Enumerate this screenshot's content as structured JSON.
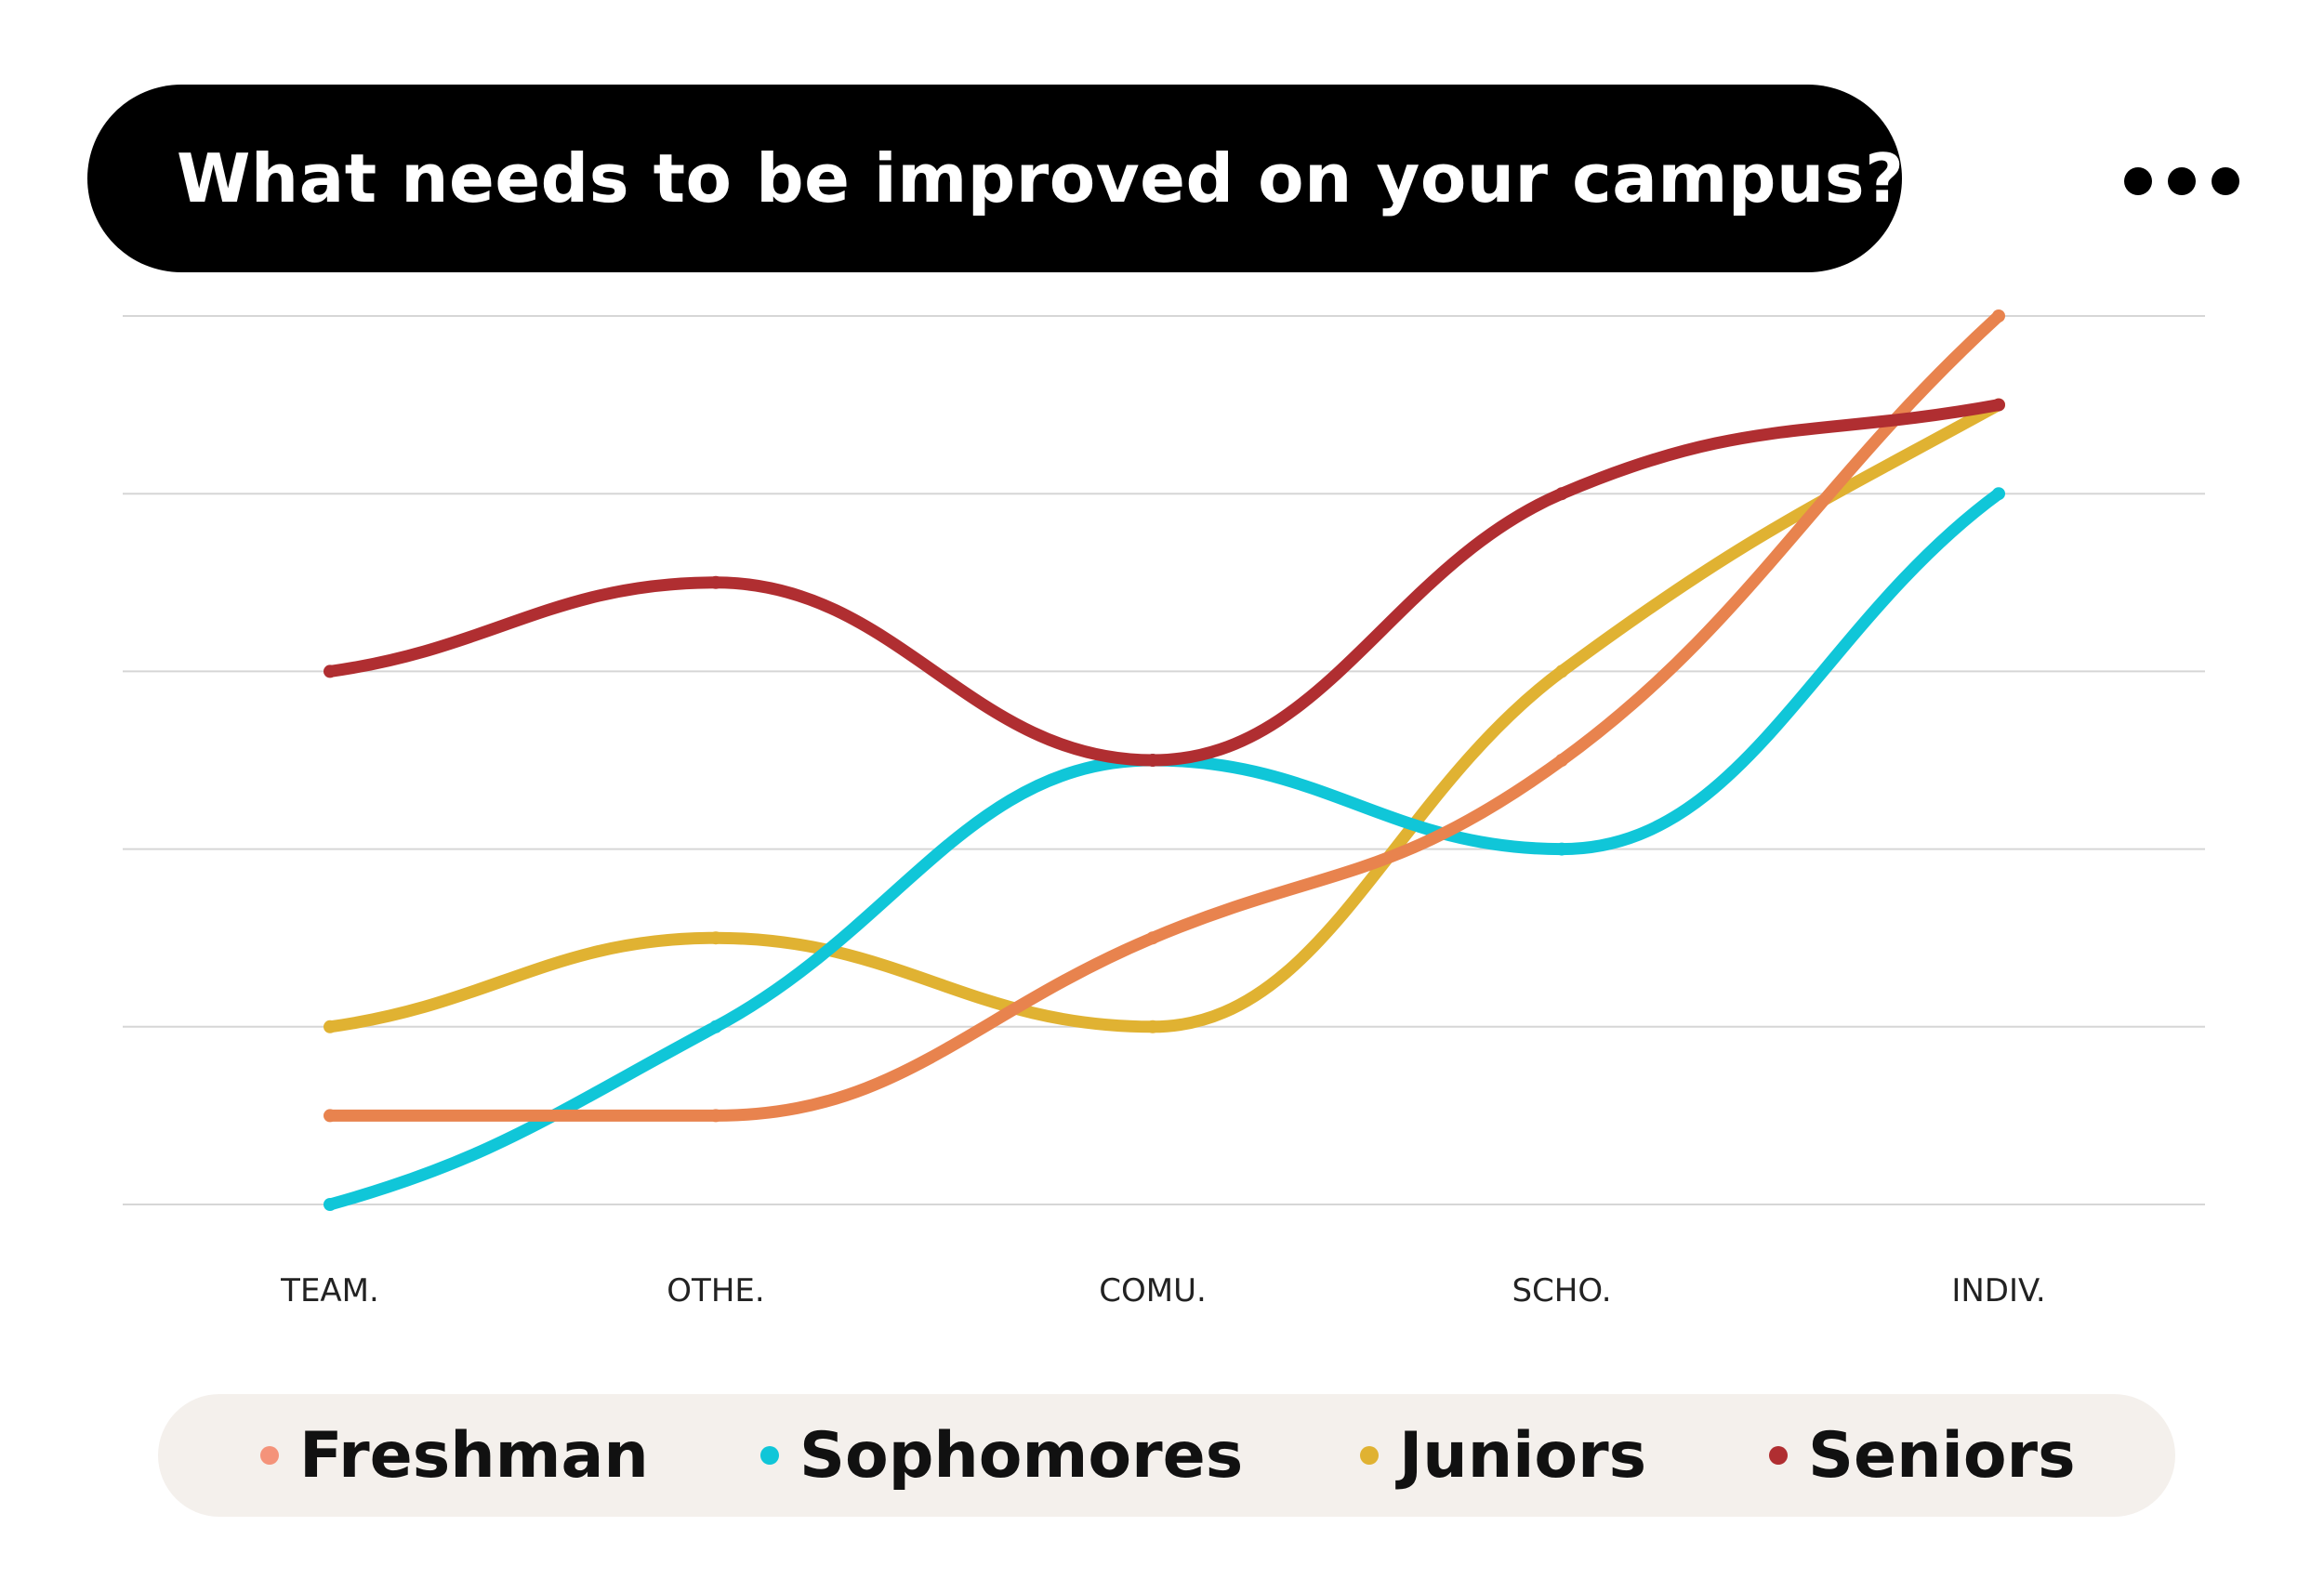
{
  "header": {
    "title": "What needs to be improved on your campus?"
  },
  "chart_data": {
    "type": "line",
    "title": "What needs to be improved on your campus?",
    "categories": [
      "TEAM.",
      "OTHE.",
      "COMU.",
      "SCHO.",
      "INDIV."
    ],
    "ylim": [
      0,
      5
    ],
    "grid": true,
    "series": [
      {
        "name": "Freshman",
        "color": "#e8834e",
        "marker_color": "#f4937a",
        "values": [
          0.5,
          0.5,
          1.5,
          2.5,
          5.0
        ]
      },
      {
        "name": "Sophomores",
        "color": "#10c6d8",
        "marker_color": "#10c6d8",
        "values": [
          0.0,
          1.0,
          2.5,
          2.0,
          4.0
        ]
      },
      {
        "name": "Juniors",
        "color": "#e0b232",
        "marker_color": "#e0b232",
        "values": [
          1.0,
          1.5,
          1.0,
          3.0,
          4.5
        ]
      },
      {
        "name": "Seniors",
        "color": "#b02e31",
        "marker_color": "#b02e31",
        "values": [
          3.0,
          3.5,
          2.5,
          4.0,
          4.5
        ]
      }
    ],
    "legend_position": "bottom"
  }
}
